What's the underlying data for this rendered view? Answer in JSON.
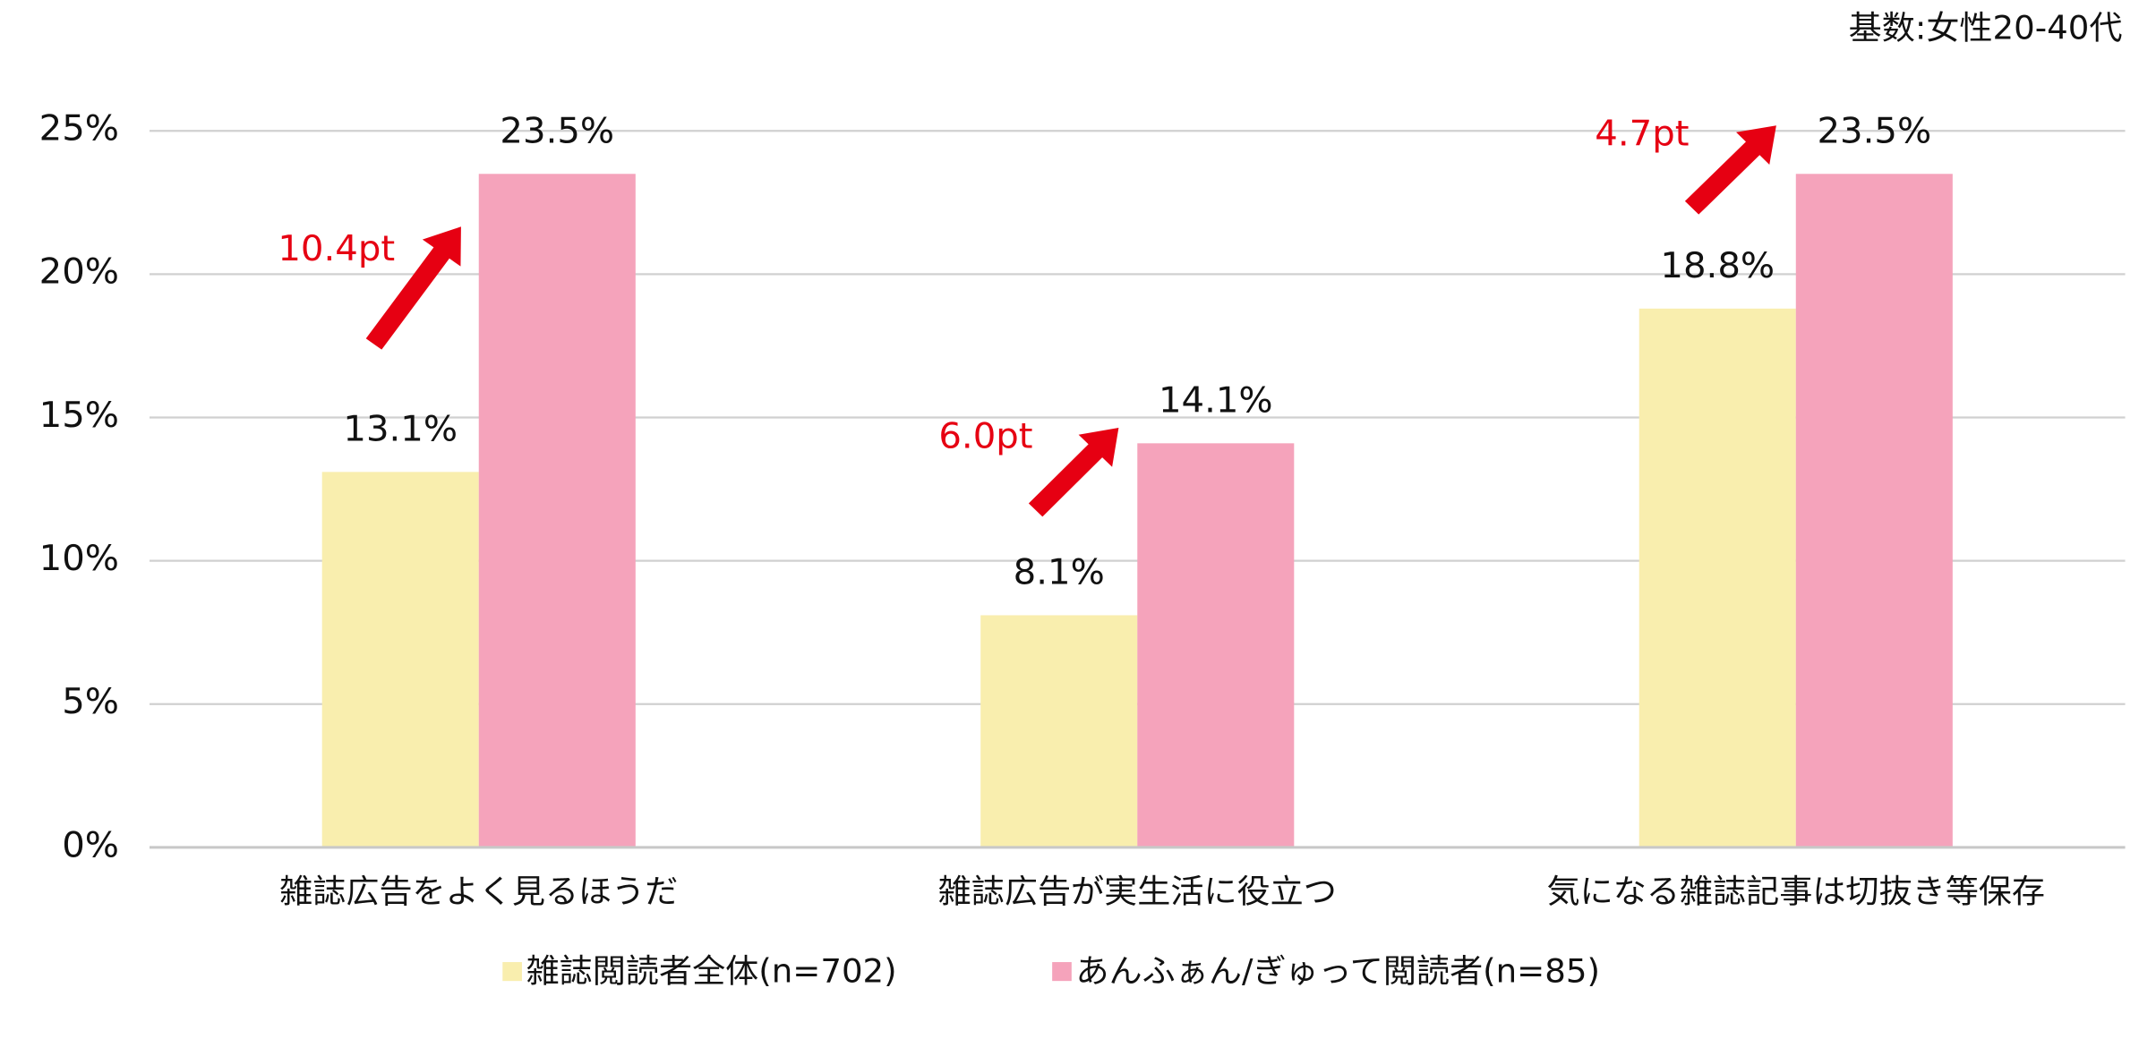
{
  "chart_data": {
    "type": "bar",
    "note": "基数:女性20-40代",
    "categories": [
      "雑誌広告をよく見るほうだ",
      "雑誌広告が実生活に役立つ",
      "気になる雑誌記事は切抜き等保存"
    ],
    "series": [
      {
        "name": "雑誌閲読者全体(n=702)",
        "color": "#f9eeae",
        "values": [
          13.1,
          8.1,
          18.8
        ],
        "value_labels": [
          "13.1%",
          "8.1%",
          "18.8%"
        ]
      },
      {
        "name": "あんふぁん/ぎゅって閲読者(n=85)",
        "color": "#f5a3bb",
        "values": [
          23.5,
          14.1,
          23.5
        ],
        "value_labels": [
          "23.5%",
          "14.1%",
          "23.5%"
        ]
      }
    ],
    "annotations": [
      "10.4pt",
      "6.0pt",
      "4.7pt"
    ],
    "annotation_color": "#e60012",
    "ylim": [
      0,
      25
    ],
    "yticks": [
      {
        "value": 0,
        "label": "0%"
      },
      {
        "value": 5,
        "label": "5%"
      },
      {
        "value": 10,
        "label": "10%"
      },
      {
        "value": 15,
        "label": "15%"
      },
      {
        "value": 20,
        "label": "20%"
      },
      {
        "value": 25,
        "label": "25%"
      }
    ],
    "grid": true
  }
}
